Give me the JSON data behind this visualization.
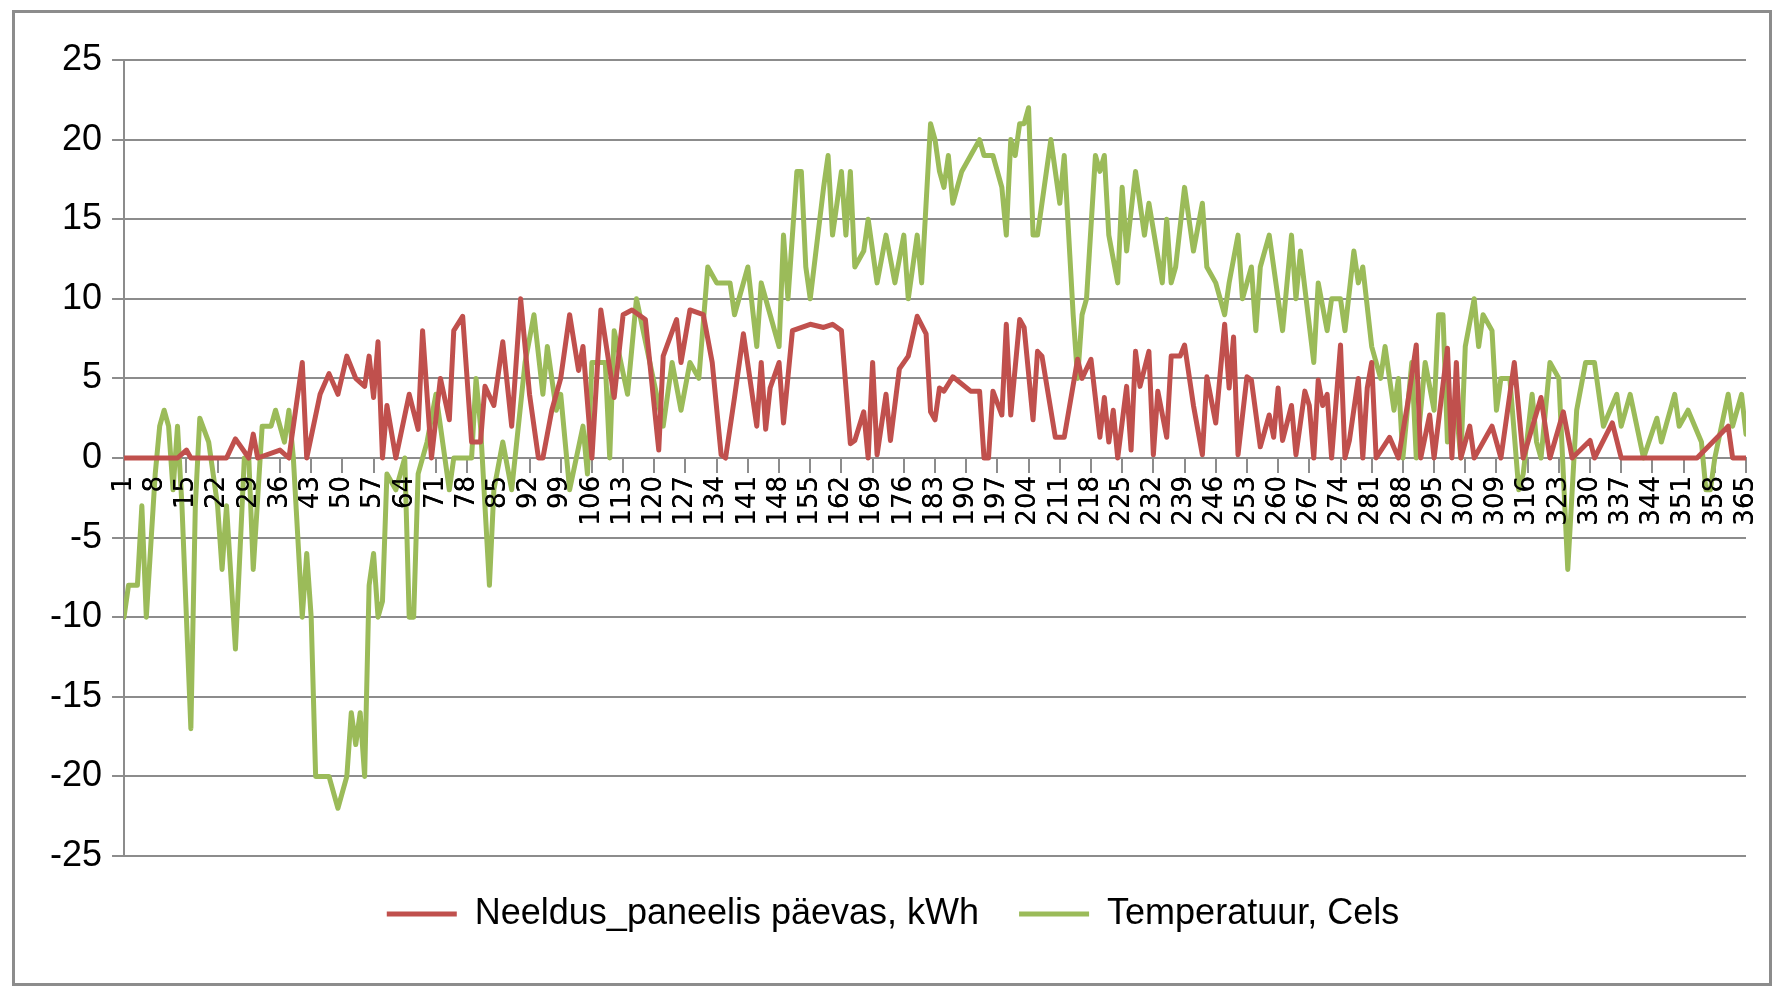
{
  "chart_data": {
    "type": "line",
    "xlim": [
      1,
      365
    ],
    "xticks": [
      1,
      8,
      15,
      22,
      29,
      36,
      43,
      50,
      57,
      64,
      71,
      78,
      85,
      92,
      99,
      106,
      113,
      120,
      127,
      134,
      141,
      148,
      155,
      162,
      169,
      176,
      183,
      190,
      197,
      204,
      211,
      218,
      225,
      232,
      239,
      246,
      253,
      260,
      267,
      274,
      281,
      288,
      295,
      302,
      309,
      316,
      323,
      330,
      337,
      344,
      351,
      358,
      365
    ],
    "ylim": [
      -25,
      25
    ],
    "yticks": [
      -25,
      -20,
      -15,
      -10,
      -5,
      0,
      5,
      10,
      15,
      20,
      25
    ],
    "grid": "y",
    "legend": "bottom",
    "marker": "none",
    "line_style": "solid",
    "series": [
      {
        "name": "Neeldus_paneelis päevas, kWh",
        "color": "#c0504d",
        "x": [
          1,
          13,
          15,
          16,
          24,
          26,
          29,
          30,
          31,
          36,
          38,
          41,
          42,
          45,
          47,
          49,
          51,
          53,
          55,
          56,
          57,
          58,
          59,
          60,
          62,
          65,
          67,
          68,
          70,
          72,
          74,
          75,
          77,
          79,
          81,
          82,
          84,
          86,
          88,
          90,
          92,
          94,
          95,
          97,
          99,
          101,
          103,
          104,
          106,
          108,
          111,
          113,
          115,
          118,
          121,
          122,
          125,
          126,
          128,
          131,
          133,
          135,
          136,
          138,
          140,
          143,
          144,
          145,
          146,
          148,
          149,
          151,
          155,
          158,
          160,
          162,
          164,
          165,
          167,
          168,
          169,
          170,
          172,
          173,
          175,
          177,
          179,
          181,
          182,
          183,
          184,
          185,
          187,
          191,
          193,
          194,
          195,
          196,
          198,
          199,
          200,
          202,
          203,
          205,
          206,
          207,
          210,
          212,
          215,
          216,
          218,
          220,
          221,
          222,
          223,
          224,
          226,
          227,
          228,
          229,
          231,
          232,
          233,
          235,
          236,
          238,
          239,
          241,
          243,
          244,
          246,
          248,
          249,
          250,
          251,
          253,
          254,
          256,
          258,
          259,
          260,
          261,
          263,
          264,
          266,
          267,
          268,
          269,
          270,
          271,
          272,
          274,
          275,
          276,
          278,
          279,
          280,
          281,
          282,
          285,
          287,
          289,
          291,
          292,
          294,
          295,
          298,
          299,
          300,
          301,
          303,
          304,
          308,
          310,
          313,
          315,
          319,
          321,
          324,
          326,
          330,
          331,
          335,
          337,
          354,
          361,
          362,
          365
        ],
        "values": [
          0,
          0,
          0.5,
          0,
          0,
          1.2,
          0,
          1.5,
          0,
          0.5,
          0,
          6,
          0,
          4,
          5.3,
          4,
          6.4,
          5,
          4.5,
          6.4,
          3.8,
          7.3,
          0,
          3.3,
          0,
          4,
          1.8,
          8,
          0,
          5,
          2.4,
          8,
          8.9,
          1,
          1,
          4.5,
          3.3,
          7.3,
          2,
          10,
          4,
          0,
          0,
          3,
          5,
          9,
          5.5,
          7,
          0,
          9.3,
          3.8,
          9,
          9.3,
          8.7,
          0.5,
          6.4,
          8.7,
          6,
          9.3,
          9,
          6,
          0.2,
          0,
          3.8,
          7.8,
          2,
          6,
          1.8,
          4.4,
          6,
          2.2,
          8,
          8.4,
          8.2,
          8.4,
          8,
          0.9,
          1.1,
          2.9,
          0,
          6,
          0.2,
          4,
          1.1,
          5.6,
          6.4,
          8.9,
          7.8,
          2.9,
          2.4,
          4.4,
          4.2,
          5.1,
          4.2,
          4.2,
          0,
          0,
          4.2,
          2.7,
          8.4,
          2.7,
          8.7,
          8.2,
          2.4,
          6.7,
          6.4,
          1.3,
          1.3,
          6.2,
          5,
          6.2,
          1.3,
          3.8,
          1,
          3,
          0,
          4.5,
          0.5,
          6.7,
          4.5,
          6.7,
          0.2,
          4.2,
          1.3,
          6.4,
          6.4,
          7.1,
          3.3,
          0.2,
          5.1,
          2.2,
          8.4,
          4.4,
          7.6,
          0.2,
          5.1,
          4.9,
          0.7,
          2.7,
          1.3,
          4.4,
          1.1,
          3.3,
          0.2,
          4.2,
          3.3,
          0,
          4.9,
          3.3,
          4,
          0,
          7.1,
          0,
          1.1,
          5,
          0,
          4.4,
          6,
          0,
          1.3,
          0,
          3.3,
          7.1,
          0,
          2.7,
          0,
          6.9,
          0,
          6,
          0,
          2,
          0,
          2,
          0,
          6,
          0,
          3.8,
          0,
          2.9,
          0,
          1.1,
          0,
          2.2,
          0,
          0,
          2,
          0,
          0
        ]
      },
      {
        "name": "Temperatuur, Cels",
        "color": "#9bbb59",
        "x": [
          1,
          2,
          4,
          5,
          6,
          8,
          9,
          10,
          11,
          12,
          13,
          14,
          16,
          17,
          18,
          20,
          22,
          23,
          24,
          26,
          28,
          29,
          30,
          32,
          34,
          35,
          37,
          38,
          39,
          41,
          42,
          43,
          44,
          47,
          49,
          51,
          52,
          53,
          54,
          55,
          56,
          57,
          58,
          59,
          60,
          62,
          64,
          65,
          66,
          67,
          69,
          71,
          72,
          74,
          75,
          79,
          80,
          81,
          83,
          84,
          86,
          88,
          91,
          93,
          95,
          96,
          98,
          99,
          101,
          104,
          105,
          106,
          109,
          110,
          111,
          114,
          116,
          119,
          122,
          124,
          126,
          128,
          130,
          132,
          134,
          137,
          138,
          141,
          143,
          144,
          146,
          148,
          149,
          150,
          152,
          153,
          154,
          155,
          158,
          159,
          160,
          162,
          163,
          164,
          165,
          167,
          168,
          170,
          172,
          174,
          176,
          177,
          179,
          180,
          182,
          183,
          184,
          185,
          186,
          187,
          189,
          191,
          193,
          194,
          196,
          198,
          199,
          200,
          201,
          202,
          203,
          204,
          205,
          206,
          209,
          211,
          212,
          214,
          215,
          216,
          217,
          219,
          220,
          221,
          222,
          224,
          225,
          226,
          228,
          230,
          231,
          234,
          235,
          236,
          237,
          239,
          241,
          243,
          244,
          246,
          248,
          249,
          251,
          252,
          254,
          255,
          256,
          258,
          261,
          263,
          264,
          265,
          268,
          269,
          271,
          272,
          274,
          275,
          277,
          278,
          279,
          281,
          283,
          284,
          286,
          287,
          288,
          290,
          291,
          293,
          295,
          296,
          297,
          298,
          300,
          301,
          302,
          304,
          305,
          306,
          308,
          309,
          310,
          312,
          314,
          315,
          317,
          318,
          319,
          321,
          323,
          325,
          327,
          329,
          331,
          333,
          336,
          337,
          339,
          342,
          345,
          346,
          349,
          350,
          352,
          355,
          356,
          357,
          358,
          361,
          362,
          364,
          365
        ],
        "values": [
          -10,
          -8,
          -8,
          -3,
          -10,
          -1,
          2,
          3,
          2,
          -2,
          2,
          -3,
          -17,
          -3,
          2.5,
          1,
          -3,
          -7,
          -3,
          -12,
          0,
          0,
          -7,
          2,
          2,
          3,
          1,
          3,
          0,
          -10,
          -6,
          -10,
          -20,
          -20,
          -22,
          -20,
          -16,
          -18,
          -16,
          -20,
          -8,
          -6,
          -10,
          -9,
          -1,
          -2,
          0,
          -10,
          -10,
          -1,
          1,
          4,
          2,
          -2,
          0,
          0,
          5,
          2,
          -8,
          -2,
          1,
          -2,
          6,
          9,
          4,
          7,
          3,
          4,
          -2,
          2,
          -1,
          6,
          6,
          0,
          8,
          4,
          10,
          6,
          2,
          6,
          3,
          6,
          5,
          12,
          11,
          11,
          9,
          12,
          7,
          11,
          9,
          7,
          14,
          10,
          18,
          18,
          12,
          10,
          17,
          19,
          14,
          18,
          14,
          18,
          12,
          13,
          15,
          11,
          14,
          11,
          14,
          10,
          14,
          11,
          21,
          20,
          18,
          17,
          19,
          16,
          18,
          19,
          20,
          19,
          19,
          17,
          14,
          20,
          19,
          21,
          21,
          22,
          14,
          14,
          20,
          16,
          19,
          9,
          5,
          9,
          10,
          19,
          18,
          19,
          14,
          11,
          17,
          13,
          18,
          14,
          16,
          11,
          15,
          11,
          12,
          17,
          13,
          16,
          12,
          11,
          9,
          11,
          14,
          10,
          12,
          8,
          12,
          14,
          8,
          14,
          10,
          13,
          6,
          11,
          8,
          10,
          10,
          8,
          13,
          11,
          12,
          7,
          5,
          7,
          3,
          5,
          0,
          6,
          0,
          6,
          3,
          9,
          9,
          1,
          3,
          0,
          7,
          10,
          7,
          9,
          8,
          3,
          5,
          5,
          -2,
          -1,
          4,
          1,
          0,
          6,
          5,
          -7,
          3,
          6,
          6,
          2,
          4,
          2,
          4,
          0,
          2.5,
          1,
          4,
          2,
          3,
          1,
          -2,
          -2,
          0,
          4,
          2,
          4,
          1.5
        ]
      }
    ]
  }
}
